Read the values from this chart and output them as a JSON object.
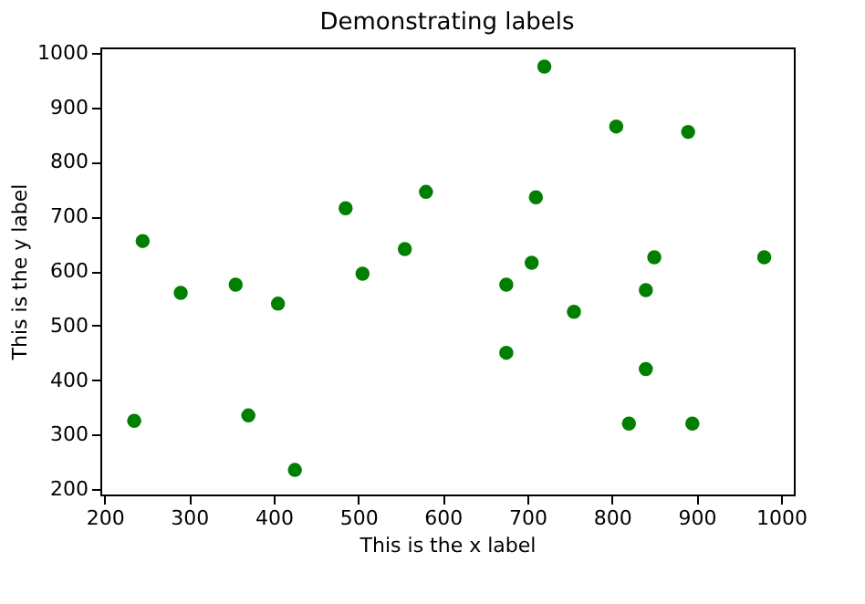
{
  "chart_data": {
    "type": "scatter",
    "title": "Demonstrating labels",
    "xlabel": "This is the x label",
    "ylabel": "This is the y label",
    "x": [
      235,
      245,
      290,
      355,
      370,
      405,
      425,
      485,
      505,
      555,
      580,
      675,
      675,
      705,
      710,
      720,
      755,
      805,
      820,
      840,
      840,
      850,
      890,
      895,
      980
    ],
    "series": [
      {
        "color": "#007f00",
        "values": [
          325,
          655,
          560,
          575,
          335,
          540,
          235,
          715,
          595,
          640,
          745,
          575,
          450,
          615,
          735,
          975,
          525,
          865,
          320,
          565,
          420,
          625,
          855,
          320,
          625
        ]
      }
    ],
    "xlim": [
      195,
      1015
    ],
    "ylim": [
      190,
      1010
    ],
    "xticks": [
      200,
      300,
      400,
      500,
      600,
      700,
      800,
      900,
      1000
    ],
    "yticks": [
      200,
      300,
      400,
      500,
      600,
      700,
      800,
      900,
      1000
    ],
    "grid": false,
    "marker": "circle"
  }
}
